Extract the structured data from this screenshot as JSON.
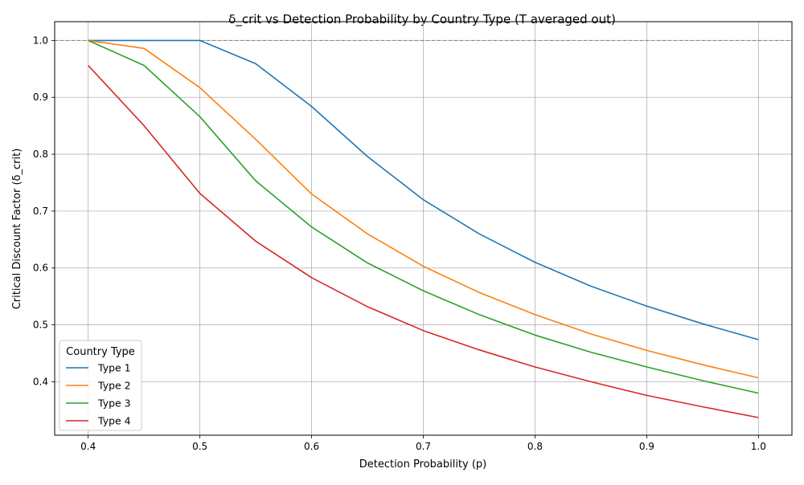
{
  "chart_data": {
    "type": "line",
    "title": "δ_crit vs Detection Probability by Country Type (T averaged out)",
    "xlabel": "Detection Probability (p)",
    "ylabel": "Critical Discount Factor (δ_crit)",
    "xlim": [
      0.37,
      1.03
    ],
    "ylim": [
      0.306,
      1.033
    ],
    "xticks": [
      "0.4",
      "0.5",
      "0.6",
      "0.7",
      "0.8",
      "0.9",
      "1.0"
    ],
    "yticks": [
      "0.4",
      "0.5",
      "0.6",
      "0.7",
      "0.8",
      "0.9",
      "1.0"
    ],
    "grid": true,
    "reference_line": {
      "y": 1.0,
      "style": "dashed",
      "color": "#808080"
    },
    "legend": {
      "title": "Country Type",
      "position": "lower-left"
    },
    "x": [
      0.4,
      0.45,
      0.5,
      0.55,
      0.6,
      0.65,
      0.7,
      0.75,
      0.8,
      0.85,
      0.9,
      0.95,
      1.0
    ],
    "series": [
      {
        "name": "Type 1",
        "color": "#1f77b4",
        "values": [
          1.0,
          1.0,
          1.0,
          0.959,
          0.884,
          0.796,
          0.72,
          0.66,
          0.61,
          0.568,
          0.533,
          0.502,
          0.474
        ]
      },
      {
        "name": "Type 2",
        "color": "#ff7f0e",
        "values": [
          1.0,
          0.986,
          0.917,
          0.826,
          0.73,
          0.66,
          0.603,
          0.557,
          0.518,
          0.484,
          0.455,
          0.43,
          0.407
        ]
      },
      {
        "name": "Type 3",
        "color": "#2ca02c",
        "values": [
          1.0,
          0.956,
          0.866,
          0.753,
          0.672,
          0.609,
          0.56,
          0.518,
          0.482,
          0.452,
          0.426,
          0.402,
          0.38
        ]
      },
      {
        "name": "Type 4",
        "color": "#d62728",
        "values": [
          0.956,
          0.85,
          0.731,
          0.647,
          0.583,
          0.532,
          0.49,
          0.456,
          0.426,
          0.4,
          0.376,
          0.356,
          0.337
        ]
      }
    ]
  }
}
